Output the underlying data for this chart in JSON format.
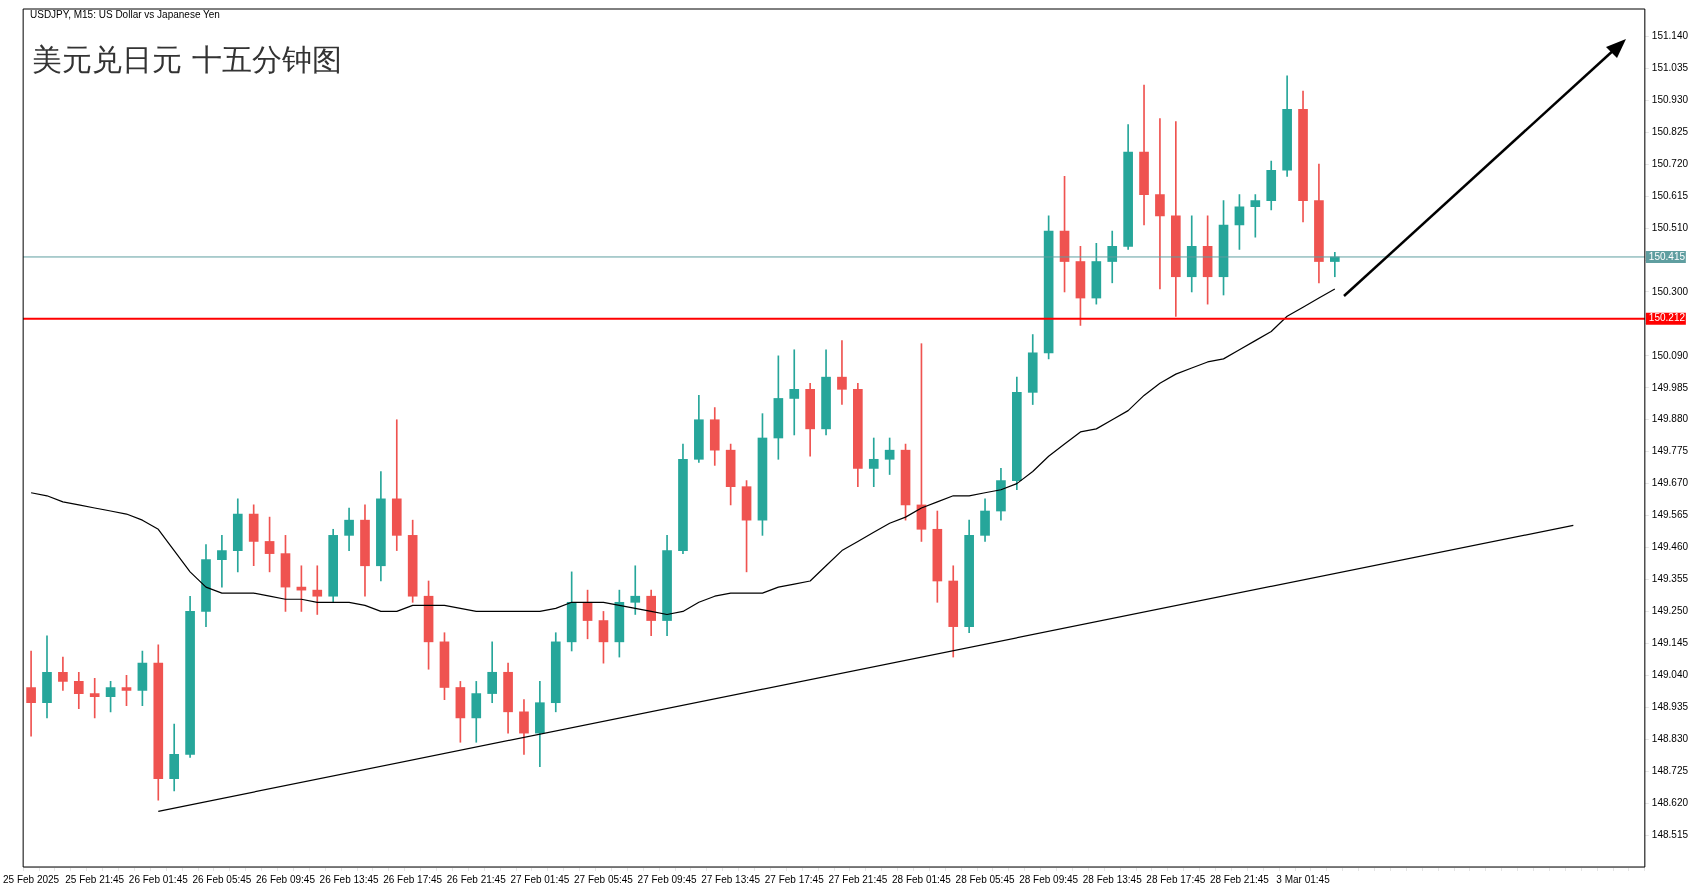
{
  "chart_data": {
    "type": "candlestick",
    "title": "美元兑日元 十五分钟图",
    "subtitle": "USDJPY, M15: US Dollar vs Japanese Yen",
    "categories": [
      "25 Feb 2025",
      null,
      null,
      null,
      "25 Feb 21:45",
      null,
      null,
      null,
      "26 Feb 01:45",
      null,
      null,
      null,
      "26 Feb 05:45",
      null,
      null,
      null,
      "26 Feb 09:45",
      null,
      null,
      null,
      "26 Feb 13:45",
      null,
      null,
      null,
      "26 Feb 17:45",
      null,
      null,
      null,
      "26 Feb 21:45",
      null,
      null,
      null,
      "27 Feb 01:45",
      null,
      null,
      null,
      "27 Feb 05:45",
      null,
      null,
      null,
      "27 Feb 09:45",
      null,
      null,
      null,
      "27 Feb 13:45",
      null,
      null,
      null,
      "27 Feb 17:45",
      null,
      null,
      null,
      "27 Feb 21:45",
      null,
      null,
      null,
      "28 Feb 01:45",
      null,
      null,
      null,
      "28 Feb 05:45",
      null,
      null,
      null,
      "28 Feb 09:45",
      null,
      null,
      null,
      "28 Feb 13:45",
      null,
      null,
      null,
      "28 Feb 17:45",
      null,
      null,
      null,
      "28 Feb 21:45",
      null,
      null,
      null,
      "3 Mar 01:45",
      null,
      null,
      null,
      null,
      null,
      null,
      null,
      null,
      null,
      null,
      null,
      null,
      null,
      null,
      null,
      null,
      null,
      null,
      null,
      null,
      null
    ],
    "ohlc": [
      [
        149.0,
        149.12,
        148.84,
        148.95
      ],
      [
        148.95,
        149.17,
        148.9,
        149.05
      ],
      [
        149.05,
        149.1,
        148.99,
        149.02
      ],
      [
        149.02,
        149.05,
        148.93,
        148.98
      ],
      [
        148.98,
        149.03,
        148.9,
        148.97
      ],
      [
        148.97,
        149.02,
        148.92,
        149.0
      ],
      [
        149.0,
        149.04,
        148.94,
        148.99
      ],
      [
        148.99,
        149.12,
        148.94,
        149.08
      ],
      [
        149.08,
        149.14,
        148.63,
        148.7
      ],
      [
        148.7,
        148.88,
        148.66,
        148.78
      ],
      [
        148.78,
        149.3,
        148.77,
        149.25
      ],
      [
        149.25,
        149.47,
        149.2,
        149.42
      ],
      [
        149.42,
        149.5,
        149.33,
        149.45
      ],
      [
        149.45,
        149.62,
        149.38,
        149.57
      ],
      [
        149.57,
        149.6,
        149.4,
        149.48
      ],
      [
        149.48,
        149.56,
        149.38,
        149.44
      ],
      [
        149.44,
        149.5,
        149.25,
        149.33
      ],
      [
        149.33,
        149.4,
        149.25,
        149.32
      ],
      [
        149.32,
        149.4,
        149.24,
        149.3
      ],
      [
        149.3,
        149.52,
        149.28,
        149.5
      ],
      [
        149.5,
        149.59,
        149.45,
        149.55
      ],
      [
        149.55,
        149.6,
        149.3,
        149.4
      ],
      [
        149.4,
        149.71,
        149.35,
        149.62
      ],
      [
        149.62,
        149.88,
        149.45,
        149.5
      ],
      [
        149.5,
        149.55,
        149.28,
        149.3
      ],
      [
        149.3,
        149.35,
        149.06,
        149.15
      ],
      [
        149.15,
        149.18,
        148.96,
        149.0
      ],
      [
        149.0,
        149.02,
        148.82,
        148.9
      ],
      [
        148.9,
        149.02,
        148.82,
        148.98
      ],
      [
        148.98,
        149.15,
        148.95,
        149.05
      ],
      [
        149.05,
        149.08,
        148.85,
        148.92
      ],
      [
        148.92,
        148.96,
        148.78,
        148.85
      ],
      [
        148.85,
        149.02,
        148.74,
        148.95
      ],
      [
        148.95,
        149.18,
        148.92,
        149.15
      ],
      [
        149.15,
        149.38,
        149.12,
        149.28
      ],
      [
        149.28,
        149.32,
        149.16,
        149.22
      ],
      [
        149.22,
        149.25,
        149.08,
        149.15
      ],
      [
        149.15,
        149.32,
        149.1,
        149.28
      ],
      [
        149.28,
        149.4,
        149.24,
        149.3
      ],
      [
        149.3,
        149.32,
        149.17,
        149.22
      ],
      [
        149.22,
        149.5,
        149.17,
        149.45
      ],
      [
        149.45,
        149.8,
        149.44,
        149.75
      ],
      [
        149.75,
        149.96,
        149.74,
        149.88
      ],
      [
        149.88,
        149.92,
        149.73,
        149.78
      ],
      [
        149.78,
        149.8,
        149.6,
        149.66
      ],
      [
        149.66,
        149.68,
        149.38,
        149.55
      ],
      [
        149.55,
        149.9,
        149.5,
        149.82
      ],
      [
        149.82,
        150.09,
        149.75,
        149.95
      ],
      [
        149.95,
        150.11,
        149.83,
        149.98
      ],
      [
        149.98,
        150.0,
        149.76,
        149.85
      ],
      [
        149.85,
        150.11,
        149.83,
        150.02
      ],
      [
        150.02,
        150.14,
        149.93,
        149.98
      ],
      [
        149.98,
        150.0,
        149.66,
        149.72
      ],
      [
        149.72,
        149.82,
        149.66,
        149.75
      ],
      [
        149.75,
        149.82,
        149.7,
        149.78
      ],
      [
        149.78,
        149.8,
        149.55,
        149.6
      ],
      [
        149.6,
        150.13,
        149.48,
        149.52
      ],
      [
        149.52,
        149.58,
        149.28,
        149.35
      ],
      [
        149.35,
        149.4,
        149.1,
        149.2
      ],
      [
        149.2,
        149.55,
        149.18,
        149.5
      ],
      [
        149.5,
        149.62,
        149.48,
        149.58
      ],
      [
        149.58,
        149.72,
        149.55,
        149.68
      ],
      [
        149.68,
        150.02,
        149.65,
        149.97
      ],
      [
        149.97,
        150.16,
        149.93,
        150.1
      ],
      [
        150.1,
        150.55,
        150.08,
        150.5
      ],
      [
        150.5,
        150.68,
        150.3,
        150.4
      ],
      [
        150.4,
        150.45,
        150.19,
        150.28
      ],
      [
        150.28,
        150.46,
        150.26,
        150.4
      ],
      [
        150.4,
        150.5,
        150.33,
        150.45
      ],
      [
        150.45,
        150.85,
        150.44,
        150.76
      ],
      [
        150.76,
        150.98,
        150.52,
        150.62
      ],
      [
        150.62,
        150.87,
        150.31,
        150.55
      ],
      [
        150.55,
        150.86,
        150.22,
        150.35
      ],
      [
        150.35,
        150.55,
        150.3,
        150.45
      ],
      [
        150.45,
        150.55,
        150.26,
        150.35
      ],
      [
        150.35,
        150.6,
        150.29,
        150.52
      ],
      [
        150.52,
        150.62,
        150.44,
        150.58
      ],
      [
        150.58,
        150.62,
        150.48,
        150.6
      ],
      [
        150.6,
        150.73,
        150.57,
        150.7
      ],
      [
        150.7,
        151.01,
        150.68,
        150.9
      ],
      [
        150.9,
        150.96,
        150.53,
        150.6
      ],
      [
        150.6,
        150.72,
        150.33,
        150.4
      ],
      [
        150.4,
        150.43,
        150.35,
        150.415
      ],
      null,
      null,
      null,
      null,
      null,
      null,
      null,
      null,
      null,
      null,
      null,
      null,
      null,
      null,
      null,
      null,
      null,
      null,
      null
    ],
    "colors": [
      "#ef5350",
      "#26a69a",
      "#ef5350",
      "#ef5350",
      "#ef5350",
      "#26a69a",
      "#ef5350",
      "#26a69a",
      "#ef5350",
      "#26a69a",
      "#26a69a",
      "#26a69a",
      "#26a69a",
      "#26a69a",
      "#ef5350",
      "#ef5350",
      "#ef5350",
      "#ef5350",
      "#ef5350",
      "#26a69a",
      "#26a69a",
      "#ef5350",
      "#26a69a",
      "#ef5350",
      "#ef5350",
      "#ef5350",
      "#ef5350",
      "#ef5350",
      "#26a69a",
      "#26a69a",
      "#ef5350",
      "#ef5350",
      "#26a69a",
      "#26a69a",
      "#26a69a",
      "#ef5350",
      "#ef5350",
      "#26a69a",
      "#26a69a",
      "#ef5350",
      "#26a69a",
      "#26a69a",
      "#26a69a",
      "#ef5350",
      "#ef5350",
      "#ef5350",
      "#26a69a",
      "#26a69a",
      "#26a69a",
      "#ef5350",
      "#26a69a",
      "#ef5350",
      "#ef5350",
      "#26a69a",
      "#26a69a",
      "#ef5350",
      "#ef5350",
      "#ef5350",
      "#ef5350",
      "#26a69a",
      "#26a69a",
      "#26a69a",
      "#26a69a",
      "#26a69a",
      "#26a69a",
      "#ef5350",
      "#ef5350",
      "#26a69a",
      "#26a69a",
      "#26a69a",
      "#ef5350",
      "#ef5350",
      "#ef5350",
      "#26a69a",
      "#ef5350",
      "#26a69a",
      "#26a69a",
      "#26a69a",
      "#26a69a",
      "#26a69a",
      "#ef5350",
      "#ef5350",
      "#26a69a",
      null,
      null,
      null,
      null,
      null,
      null,
      null,
      null,
      null,
      null,
      null,
      null,
      null,
      null,
      null,
      null,
      null,
      null,
      null
    ],
    "series": [
      {
        "type": "line",
        "color": "#000000",
        "values": [
          149.64,
          149.63,
          149.61,
          149.6,
          149.59,
          149.58,
          149.57,
          149.55,
          149.52,
          149.45,
          149.38,
          149.33,
          149.31,
          149.31,
          149.31,
          149.3,
          149.29,
          149.29,
          149.28,
          149.28,
          149.28,
          149.27,
          149.25,
          149.25,
          149.27,
          149.27,
          149.27,
          149.26,
          149.25,
          149.25,
          149.25,
          149.25,
          149.25,
          149.26,
          149.28,
          149.28,
          149.28,
          149.27,
          149.26,
          149.25,
          149.24,
          149.25,
          149.28,
          149.3,
          149.31,
          149.31,
          149.31,
          149.33,
          149.34,
          149.35,
          149.4,
          149.45,
          149.48,
          149.51,
          149.54,
          149.56,
          149.59,
          149.61,
          149.63,
          149.63,
          149.64,
          149.65,
          149.67,
          149.71,
          149.76,
          149.8,
          149.84,
          149.85,
          149.88,
          149.91,
          149.96,
          150.0,
          150.03,
          150.05,
          150.07,
          150.08,
          150.11,
          150.14,
          150.17,
          150.22,
          150.25,
          150.28,
          150.31,
          null,
          null,
          null,
          null,
          null,
          null,
          null,
          null,
          null,
          null,
          null,
          null,
          null,
          null,
          null,
          null,
          null,
          null,
          null
        ]
      },
      {
        "type": "line",
        "color": "#000000",
        "values": [
          null,
          null,
          null,
          null,
          null,
          null,
          null,
          null,
          148.593,
          null,
          null,
          null,
          null,
          null,
          null,
          null,
          null,
          null,
          null,
          null,
          null,
          null,
          null,
          null,
          null,
          null,
          null,
          null,
          null,
          null,
          null,
          null,
          null,
          null,
          null,
          null,
          null,
          null,
          null,
          null,
          null,
          null,
          null,
          null,
          null,
          null,
          null,
          null,
          null,
          null,
          null,
          null,
          null,
          null,
          null,
          null,
          null,
          null,
          null,
          null,
          null,
          null,
          null,
          null,
          null,
          null,
          null,
          null,
          null,
          null,
          null,
          null,
          null,
          null,
          null,
          null,
          null,
          null,
          null,
          null,
          null,
          null,
          null,
          null,
          null,
          null,
          null,
          null,
          null,
          null,
          null,
          null,
          null,
          null,
          null,
          null,
          null,
          149.533,
          null,
          null,
          null,
          null
        ]
      }
    ],
    "ylim": [
      148.41,
      151.23
    ],
    "yticks": [
      148.515,
      {
        "value": 148.62,
        "label": "148.620"
      },
      148.725,
      {
        "value": 148.83,
        "label": "148.830"
      },
      148.935,
      {
        "value": 149.04,
        "label": "149.040"
      },
      149.145,
      {
        "value": 149.25,
        "label": "149.250"
      },
      149.355,
      {
        "value": 149.46,
        "label": "149.460"
      },
      149.565,
      {
        "value": 149.67,
        "label": "149.670"
      },
      149.775,
      {
        "value": 149.88,
        "label": "149.880"
      },
      149.985,
      {
        "value": 150.09,
        "label": "150.090"
      },
      {
        "value": 150.195,
        "label": null
      },
      {
        "value": 150.3,
        "label": "150.300"
      },
      {
        "value": 150.405,
        "label": null
      },
      {
        "value": 150.51,
        "label": "150.510"
      },
      150.615,
      {
        "value": 150.72,
        "label": "150.720"
      },
      150.825,
      {
        "value": 150.93,
        "label": "150.930"
      },
      151.035,
      {
        "value": 151.14,
        "label": "151.140"
      }
    ],
    "ref_lines": [
      {
        "axis": "y",
        "value": 150.212,
        "label": "150.212",
        "color": "#ff0000"
      },
      {
        "axis": "y",
        "value": 150.415,
        "label": "150.415",
        "color": "#5f9ea0"
      }
    ]
  }
}
